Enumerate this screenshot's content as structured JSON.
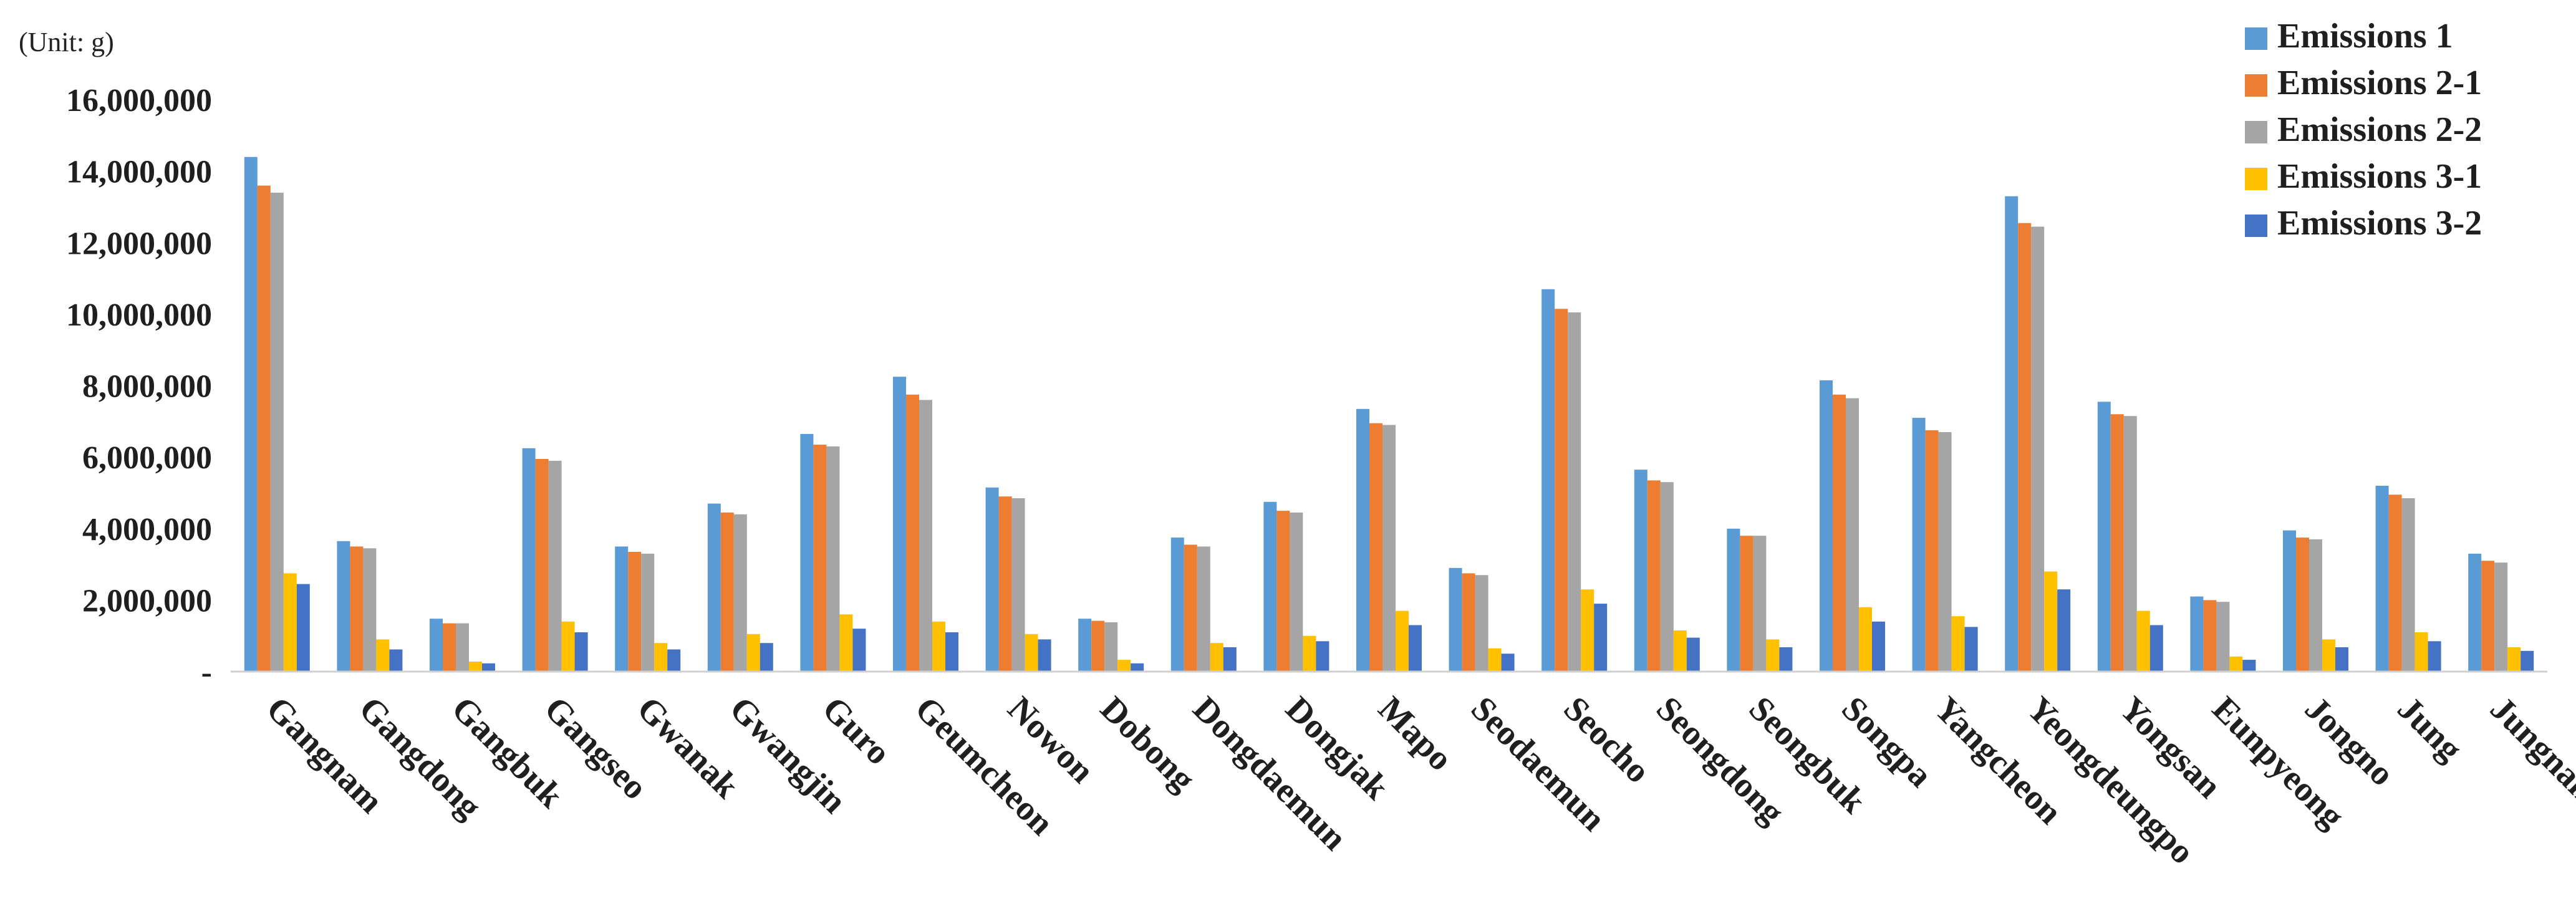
{
  "unit_label": "(Unit: g)",
  "colors": {
    "Emissions 1": "#5B9BD5",
    "Emissions 2-1": "#ED7D31",
    "Emissions 2-2": "#A5A5A5",
    "Emissions 3-1": "#FFC000",
    "Emissions 3-2": "#4472C4"
  },
  "chart_data": {
    "type": "bar",
    "title": "",
    "xlabel": "",
    "ylabel": "",
    "ylim": [
      0,
      16000000
    ],
    "yticks": [
      0,
      2000000,
      4000000,
      6000000,
      8000000,
      10000000,
      12000000,
      14000000,
      16000000
    ],
    "ytick_labels": [
      "-",
      "2,000,000",
      "4,000,000",
      "6,000,000",
      "8,000,000",
      "10,000,000",
      "12,000,000",
      "14,000,000",
      "16,000,000"
    ],
    "grid": false,
    "legend_position": "top-right",
    "categories": [
      "Gangnam",
      "Gangdong",
      "Gangbuk",
      "Gangseo",
      "Gwanak",
      "Gwangjin",
      "Guro",
      "Geumcheon",
      "Nowon",
      "Dobong",
      "Dongdaemun",
      "Dongjak",
      "Mapo",
      "Seodaemun",
      "Seocho",
      "Seongdong",
      "Seongbuk",
      "Songpa",
      "Yangcheon",
      "Yeongdeungpo",
      "Yongsan",
      "Eunpyeong",
      "Jongno",
      "Jung",
      "Jungnang"
    ],
    "series": [
      {
        "name": "Emissions 1",
        "values": [
          14400000,
          3650000,
          1480000,
          6250000,
          3500000,
          4700000,
          6650000,
          8250000,
          5150000,
          1480000,
          3750000,
          4750000,
          7350000,
          2900000,
          10700000,
          5650000,
          4000000,
          8150000,
          7100000,
          13300000,
          7550000,
          2100000,
          3950000,
          5200000,
          3300000
        ]
      },
      {
        "name": "Emissions 2-1",
        "values": [
          13600000,
          3500000,
          1350000,
          5950000,
          3350000,
          4450000,
          6350000,
          7750000,
          4900000,
          1420000,
          3550000,
          4500000,
          6950000,
          2750000,
          10150000,
          5350000,
          3800000,
          7750000,
          6750000,
          12550000,
          7200000,
          2000000,
          3750000,
          4950000,
          3100000
        ]
      },
      {
        "name": "Emissions 2-2",
        "values": [
          13400000,
          3450000,
          1350000,
          5900000,
          3300000,
          4400000,
          6300000,
          7600000,
          4850000,
          1380000,
          3500000,
          4450000,
          6900000,
          2700000,
          10050000,
          5300000,
          3800000,
          7650000,
          6700000,
          12450000,
          7150000,
          1950000,
          3700000,
          4850000,
          3050000
        ]
      },
      {
        "name": "Emissions 3-1",
        "values": [
          2750000,
          900000,
          280000,
          1400000,
          800000,
          1050000,
          1600000,
          1400000,
          1050000,
          330000,
          800000,
          1000000,
          1700000,
          650000,
          2300000,
          1150000,
          900000,
          1800000,
          1550000,
          2800000,
          1700000,
          420000,
          900000,
          1100000,
          680000
        ]
      },
      {
        "name": "Emissions 3-2",
        "values": [
          2450000,
          620000,
          230000,
          1100000,
          620000,
          800000,
          1200000,
          1100000,
          900000,
          230000,
          680000,
          850000,
          1300000,
          500000,
          1900000,
          950000,
          680000,
          1400000,
          1250000,
          2300000,
          1300000,
          330000,
          680000,
          850000,
          580000
        ]
      }
    ]
  }
}
